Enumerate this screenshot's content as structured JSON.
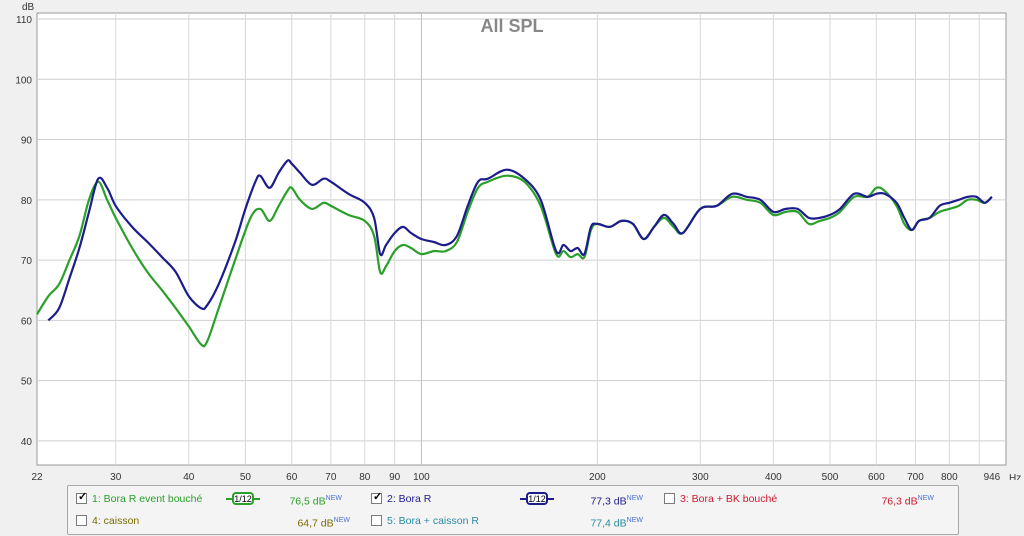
{
  "chart_data": {
    "type": "line",
    "title": "All SPL",
    "ylabel": "dB",
    "xunit": "Hz",
    "xscale": "log",
    "xlim": [
      22,
      1000
    ],
    "ylim": [
      36,
      111
    ],
    "grid": true,
    "yticks": [
      40,
      50,
      60,
      70,
      80,
      90,
      100,
      110
    ],
    "xticks": [
      22,
      30,
      40,
      50,
      60,
      70,
      80,
      90,
      100,
      200,
      300,
      400,
      500,
      600,
      700,
      800,
      946
    ],
    "xtick_labels": [
      "22",
      "30",
      "40",
      "50",
      "60",
      "70",
      "80",
      "90",
      "100",
      "200",
      "300",
      "400",
      "500",
      "600",
      "700",
      "800",
      "946"
    ],
    "series": [
      {
        "name": "1: Bora R event bouché",
        "color": "#2aa02a",
        "points": [
          [
            22,
            61
          ],
          [
            23,
            64
          ],
          [
            24,
            66
          ],
          [
            25,
            70
          ],
          [
            26,
            74
          ],
          [
            27,
            80
          ],
          [
            28,
            83
          ],
          [
            29,
            80
          ],
          [
            30,
            77
          ],
          [
            32,
            72
          ],
          [
            34,
            68
          ],
          [
            36,
            65
          ],
          [
            38,
            62
          ],
          [
            40,
            59
          ],
          [
            42,
            56
          ],
          [
            43,
            56.5
          ],
          [
            45,
            62
          ],
          [
            48,
            70
          ],
          [
            51,
            77
          ],
          [
            53,
            78.5
          ],
          [
            55,
            76.5
          ],
          [
            57,
            79
          ],
          [
            59,
            81.5
          ],
          [
            60,
            82
          ],
          [
            62,
            80
          ],
          [
            65,
            78.5
          ],
          [
            68,
            79.5
          ],
          [
            70,
            79
          ],
          [
            75,
            77.5
          ],
          [
            80,
            76.5
          ],
          [
            83,
            74
          ],
          [
            85,
            68
          ],
          [
            87,
            69
          ],
          [
            90,
            71.5
          ],
          [
            93,
            72.5
          ],
          [
            96,
            72
          ],
          [
            100,
            71
          ],
          [
            105,
            71.5
          ],
          [
            110,
            71.5
          ],
          [
            115,
            73
          ],
          [
            120,
            78
          ],
          [
            125,
            82
          ],
          [
            130,
            83
          ],
          [
            140,
            84
          ],
          [
            150,
            83
          ],
          [
            160,
            79
          ],
          [
            170,
            71
          ],
          [
            175,
            71.5
          ],
          [
            180,
            70.5
          ],
          [
            185,
            71
          ],
          [
            190,
            70.5
          ],
          [
            195,
            75
          ],
          [
            200,
            76
          ],
          [
            210,
            75.5
          ],
          [
            220,
            76.5
          ],
          [
            230,
            76
          ],
          [
            240,
            73.5
          ],
          [
            250,
            75.5
          ],
          [
            260,
            77
          ],
          [
            270,
            75.5
          ],
          [
            280,
            74.5
          ],
          [
            300,
            78.5
          ],
          [
            320,
            79
          ],
          [
            340,
            80.5
          ],
          [
            360,
            80
          ],
          [
            380,
            79.5
          ],
          [
            400,
            77.5
          ],
          [
            420,
            78
          ],
          [
            440,
            78
          ],
          [
            460,
            76
          ],
          [
            480,
            76.5
          ],
          [
            500,
            77
          ],
          [
            520,
            78
          ],
          [
            550,
            80.5
          ],
          [
            580,
            80.5
          ],
          [
            600,
            82
          ],
          [
            620,
            81.5
          ],
          [
            650,
            79
          ],
          [
            670,
            76
          ],
          [
            690,
            75
          ],
          [
            710,
            76.5
          ],
          [
            740,
            77
          ],
          [
            770,
            78
          ],
          [
            800,
            78.5
          ],
          [
            830,
            79
          ],
          [
            860,
            80
          ],
          [
            890,
            80
          ],
          [
            920,
            79.5
          ],
          [
            946,
            80.5
          ]
        ]
      },
      {
        "name": "2: Bora R",
        "color": "#1c1c8c",
        "points": [
          [
            23,
            60
          ],
          [
            24,
            62
          ],
          [
            25,
            67
          ],
          [
            26,
            72
          ],
          [
            27,
            78
          ],
          [
            28,
            83.5
          ],
          [
            29,
            82
          ],
          [
            30,
            79
          ],
          [
            32,
            75.5
          ],
          [
            34,
            73
          ],
          [
            36,
            70.5
          ],
          [
            38,
            68
          ],
          [
            40,
            64
          ],
          [
            42,
            62
          ],
          [
            43,
            62.5
          ],
          [
            45,
            66
          ],
          [
            48,
            73
          ],
          [
            50,
            78.5
          ],
          [
            52,
            83
          ],
          [
            53,
            84
          ],
          [
            55,
            82
          ],
          [
            57,
            84.5
          ],
          [
            59,
            86.5
          ],
          [
            60,
            86
          ],
          [
            62,
            84.5
          ],
          [
            65,
            82.5
          ],
          [
            68,
            83.5
          ],
          [
            70,
            83
          ],
          [
            75,
            81
          ],
          [
            80,
            79.5
          ],
          [
            83,
            77
          ],
          [
            85,
            71
          ],
          [
            87,
            72.5
          ],
          [
            90,
            74.5
          ],
          [
            93,
            75.5
          ],
          [
            96,
            74.5
          ],
          [
            100,
            73.5
          ],
          [
            105,
            73
          ],
          [
            110,
            72.5
          ],
          [
            115,
            74
          ],
          [
            120,
            79
          ],
          [
            125,
            83
          ],
          [
            130,
            83.5
          ],
          [
            140,
            85
          ],
          [
            150,
            83.5
          ],
          [
            160,
            80
          ],
          [
            170,
            71.5
          ],
          [
            175,
            72.5
          ],
          [
            180,
            71.5
          ],
          [
            185,
            72
          ],
          [
            190,
            71
          ],
          [
            195,
            75.5
          ],
          [
            200,
            76
          ],
          [
            210,
            75.5
          ],
          [
            220,
            76.5
          ],
          [
            230,
            76
          ],
          [
            240,
            73.5
          ],
          [
            250,
            75.5
          ],
          [
            260,
            77.5
          ],
          [
            270,
            76
          ],
          [
            280,
            74.5
          ],
          [
            300,
            78.5
          ],
          [
            320,
            79
          ],
          [
            340,
            81
          ],
          [
            360,
            80.5
          ],
          [
            380,
            80
          ],
          [
            400,
            78
          ],
          [
            420,
            78.5
          ],
          [
            440,
            78.5
          ],
          [
            460,
            77
          ],
          [
            480,
            77
          ],
          [
            500,
            77.5
          ],
          [
            520,
            78.5
          ],
          [
            550,
            81
          ],
          [
            580,
            80.5
          ],
          [
            600,
            81
          ],
          [
            620,
            81
          ],
          [
            650,
            79.5
          ],
          [
            670,
            77
          ],
          [
            690,
            75
          ],
          [
            710,
            76.5
          ],
          [
            740,
            77
          ],
          [
            770,
            79
          ],
          [
            800,
            79.5
          ],
          [
            830,
            80
          ],
          [
            860,
            80.5
          ],
          [
            890,
            80.5
          ],
          [
            920,
            79.5
          ],
          [
            946,
            80.5
          ]
        ]
      }
    ]
  },
  "legend": {
    "row1": [
      {
        "checked": true,
        "label": "1: Bora R event bouché",
        "color": "#2aa02a",
        "smoothing": "1/12",
        "value": "76,5 dB",
        "badge": "NEW"
      },
      {
        "checked": true,
        "label": "2: Bora R",
        "color": "#1c1c8c",
        "smoothing": "1/12",
        "value": "77,3 dB",
        "badge": "NEW"
      },
      {
        "checked": false,
        "label": "3: Bora + BK bouché",
        "color": "#d01830",
        "value": "76,3 dB",
        "badge": "NEW"
      }
    ],
    "row2": [
      {
        "checked": false,
        "label": "4: caisson",
        "color": "#7a6a00",
        "value": "64,7 dB",
        "badge": "NEW"
      },
      {
        "checked": false,
        "label": "5: Bora + caisson R",
        "color": "#2a8aa0",
        "value": "77,4 dB",
        "badge": "NEW"
      }
    ]
  }
}
